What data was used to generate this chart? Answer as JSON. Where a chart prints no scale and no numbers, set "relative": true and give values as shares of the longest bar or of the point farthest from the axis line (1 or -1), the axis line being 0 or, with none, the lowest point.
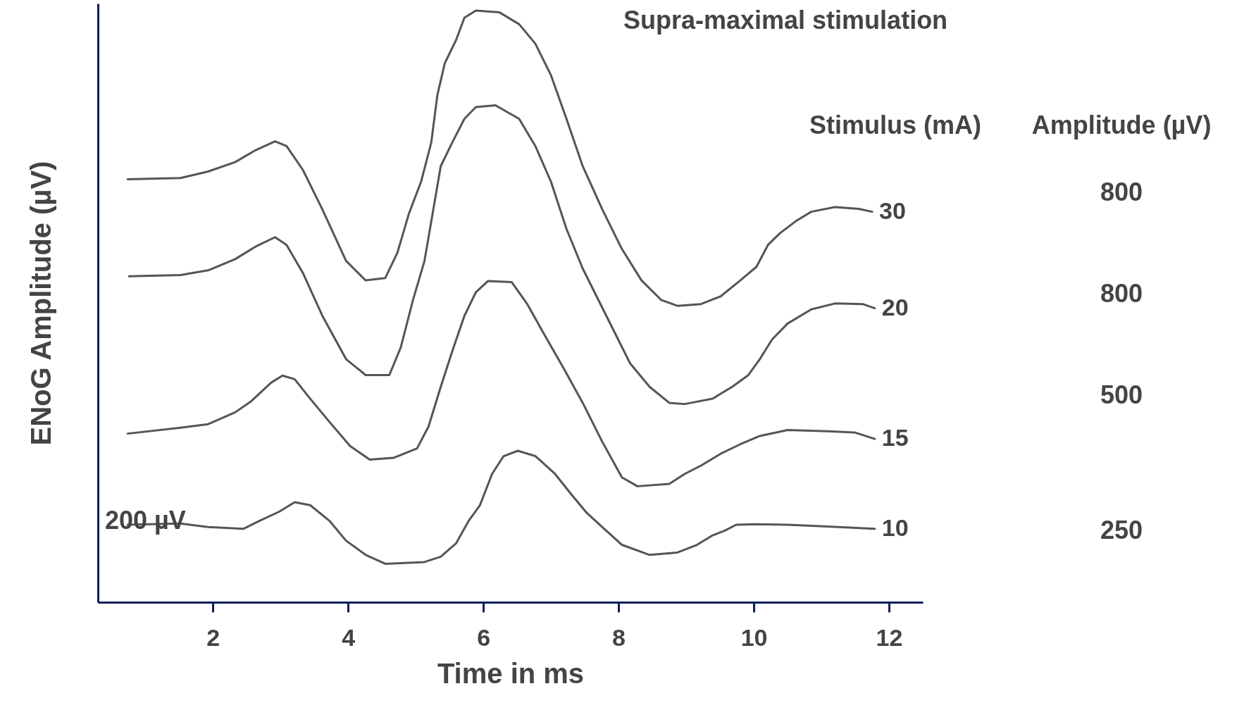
{
  "chart_data": {
    "type": "line",
    "relative": true,
    "xlabel": "Time in ms",
    "ylabel": "ENoG Amplitude (µV)",
    "xlim": [
      0.3,
      12.5
    ],
    "xticks": [
      2,
      4,
      6,
      8,
      10,
      12
    ],
    "grid": false,
    "marker": "none",
    "line_style": "solid",
    "annotations": [
      "Supra-maximal stimulation",
      "Stimulus (mA)",
      "Amplitude (µV)",
      "800",
      "800",
      "500",
      "250",
      "200 µV"
    ],
    "series": [
      {
        "name": "30",
        "color": "#555555",
        "x": [
          0.74,
          1.52,
          1.93,
          2.33,
          2.63,
          2.92,
          3.09,
          3.33,
          3.62,
          3.97,
          4.26,
          4.55,
          4.73,
          4.9,
          5.08,
          5.23,
          5.32,
          5.43,
          5.6,
          5.72,
          5.89,
          6.24,
          6.53,
          6.77,
          7.0,
          7.23,
          7.47,
          7.76,
          8.05,
          8.34,
          8.63,
          8.87,
          9.22,
          9.51,
          9.8,
          10.04,
          10.21,
          10.39,
          10.62,
          10.85,
          11.2,
          11.55,
          11.75
        ],
        "values": [
          0.715,
          0.717,
          0.728,
          0.744,
          0.764,
          0.779,
          0.771,
          0.731,
          0.664,
          0.577,
          0.544,
          0.548,
          0.591,
          0.657,
          0.711,
          0.777,
          0.857,
          0.911,
          0.951,
          0.988,
          1,
          0.997,
          0.977,
          0.944,
          0.891,
          0.817,
          0.737,
          0.664,
          0.597,
          0.544,
          0.511,
          0.501,
          0.504,
          0.517,
          0.544,
          0.567,
          0.604,
          0.624,
          0.644,
          0.66,
          0.668,
          0.665,
          0.66
        ]
      },
      {
        "name": "20",
        "color": "#555555",
        "x": [
          0.76,
          1.52,
          1.93,
          2.33,
          2.63,
          2.92,
          3.09,
          3.33,
          3.62,
          3.97,
          4.26,
          4.61,
          4.78,
          4.96,
          5.13,
          5.25,
          5.37,
          5.54,
          5.72,
          5.89,
          6.18,
          6.53,
          6.77,
          7.0,
          7.23,
          7.47,
          7.82,
          8.17,
          8.46,
          8.75,
          8.98,
          9.39,
          9.68,
          9.92,
          10.09,
          10.27,
          10.5,
          10.85,
          11.2,
          11.61,
          11.79
        ],
        "values": [
          0.551,
          0.553,
          0.561,
          0.58,
          0.601,
          0.617,
          0.604,
          0.557,
          0.484,
          0.411,
          0.384,
          0.384,
          0.431,
          0.511,
          0.577,
          0.657,
          0.737,
          0.777,
          0.817,
          0.837,
          0.84,
          0.817,
          0.771,
          0.711,
          0.631,
          0.564,
          0.484,
          0.404,
          0.364,
          0.337,
          0.335,
          0.344,
          0.364,
          0.384,
          0.411,
          0.444,
          0.471,
          0.495,
          0.505,
          0.504,
          0.497
        ]
      },
      {
        "name": "15",
        "color": "#555555",
        "x": [
          0.74,
          1.52,
          1.93,
          2.33,
          2.57,
          2.86,
          3.03,
          3.21,
          3.44,
          3.73,
          4.03,
          4.32,
          4.67,
          5.02,
          5.19,
          5.37,
          5.54,
          5.72,
          5.89,
          6.07,
          6.42,
          6.65,
          6.88,
          7.18,
          7.47,
          7.76,
          8.05,
          8.28,
          8.75,
          8.98,
          9.22,
          9.51,
          9.8,
          10.09,
          10.5,
          11.09,
          11.49,
          11.79
        ],
        "values": [
          0.285,
          0.295,
          0.301,
          0.321,
          0.34,
          0.371,
          0.383,
          0.377,
          0.344,
          0.304,
          0.264,
          0.241,
          0.244,
          0.26,
          0.297,
          0.364,
          0.424,
          0.484,
          0.524,
          0.543,
          0.541,
          0.504,
          0.457,
          0.397,
          0.337,
          0.271,
          0.211,
          0.196,
          0.2,
          0.217,
          0.231,
          0.251,
          0.267,
          0.281,
          0.291,
          0.289,
          0.287,
          0.276
        ]
      },
      {
        "name": "10",
        "color": "#555555",
        "x": [
          0.74,
          1.52,
          1.93,
          2.45,
          2.68,
          2.98,
          3.21,
          3.44,
          3.73,
          3.97,
          4.26,
          4.55,
          5.13,
          5.37,
          5.6,
          5.78,
          5.95,
          6.13,
          6.3,
          6.51,
          6.77,
          7.06,
          7.29,
          7.53,
          7.76,
          8.05,
          8.46,
          8.87,
          9.16,
          9.39,
          9.57,
          9.74,
          10.04,
          10.5,
          11.09,
          11.79
        ],
        "values": [
          0.131,
          0.133,
          0.127,
          0.124,
          0.137,
          0.153,
          0.169,
          0.164,
          0.137,
          0.104,
          0.08,
          0.065,
          0.068,
          0.077,
          0.1,
          0.137,
          0.164,
          0.217,
          0.247,
          0.256,
          0.247,
          0.217,
          0.184,
          0.151,
          0.127,
          0.097,
          0.08,
          0.084,
          0.097,
          0.113,
          0.121,
          0.131,
          0.132,
          0.131,
          0.128,
          0.124
        ]
      }
    ]
  }
}
